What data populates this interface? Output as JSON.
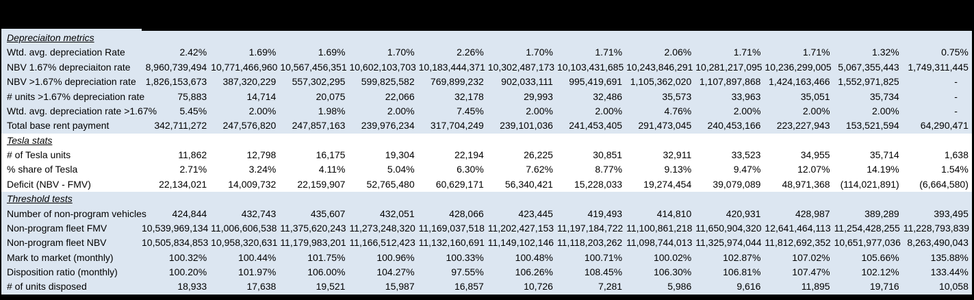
{
  "colors": {
    "header_bar": "#000000",
    "section_fill_blue": "#dce6f1",
    "section_fill_white": "#ffffff",
    "text": "#000000"
  },
  "table": {
    "num_data_columns": 12,
    "sections": [
      {
        "header": "Depreciaiton metrics",
        "fill": "#dce6f1",
        "rows": [
          {
            "label": "Wtd. avg. depreciation Rate",
            "values": [
              "2.42%",
              "1.69%",
              "1.69%",
              "1.70%",
              "2.26%",
              "1.70%",
              "1.71%",
              "2.06%",
              "1.71%",
              "1.71%",
              "1.32%",
              "0.75%"
            ]
          },
          {
            "label": "NBV 1.67% depreciaiton rate",
            "values": [
              "8,960,739,494",
              "10,771,466,960",
              "10,567,456,351",
              "10,602,103,703",
              "10,183,444,371",
              "10,302,487,173",
              "10,103,431,685",
              "10,243,846,291",
              "10,281,217,095",
              "10,236,299,005",
              "5,067,355,443",
              "1,749,311,445"
            ]
          },
          {
            "label": "NBV >1.67% depreciation rate",
            "values": [
              "1,826,153,673",
              "387,320,229",
              "557,302,295",
              "599,825,582",
              "769,899,232",
              "902,033,111",
              "995,419,691",
              "1,105,362,020",
              "1,107,897,868",
              "1,424,163,466",
              "1,552,971,825",
              "-"
            ]
          },
          {
            "label": "# units >1.67% depreciation rate",
            "values": [
              "75,883",
              "14,714",
              "20,075",
              "22,066",
              "32,178",
              "29,993",
              "32,486",
              "35,573",
              "33,963",
              "35,051",
              "35,734",
              "-"
            ]
          },
          {
            "label": "Wtd. avg. depreciation rate >1.67%",
            "values": [
              "5.45%",
              "2.00%",
              "1.98%",
              "2.00%",
              "7.45%",
              "2.00%",
              "2.00%",
              "4.76%",
              "2.00%",
              "2.00%",
              "2.00%",
              "-"
            ]
          },
          {
            "label": "Total base rent payment",
            "values": [
              "342,711,272",
              "247,576,820",
              "247,857,163",
              "239,976,234",
              "317,704,249",
              "239,101,036",
              "241,453,405",
              "291,473,045",
              "240,453,166",
              "223,227,943",
              "153,521,594",
              "64,290,471"
            ]
          }
        ]
      },
      {
        "header": "Tesla stats",
        "fill": "#ffffff",
        "rows": [
          {
            "label": "# of Tesla units",
            "values": [
              "11,862",
              "12,798",
              "16,175",
              "19,304",
              "22,194",
              "26,225",
              "30,851",
              "32,911",
              "33,523",
              "34,955",
              "35,714",
              "1,638"
            ]
          },
          {
            "label": "% share of Tesla",
            "values": [
              "2.71%",
              "3.24%",
              "4.11%",
              "5.04%",
              "6.30%",
              "7.62%",
              "8.77%",
              "9.13%",
              "9.47%",
              "12.07%",
              "14.19%",
              "1.54%"
            ]
          },
          {
            "label": "Deficit (NBV - FMV)",
            "values": [
              "22,134,021",
              "14,009,732",
              "22,159,907",
              "52,765,480",
              "60,629,171",
              "56,340,421",
              "15,228,033",
              "19,274,454",
              "39,079,089",
              "48,971,368",
              "(114,021,891)",
              "(6,664,580)"
            ]
          }
        ]
      },
      {
        "header": "Threshold tests",
        "fill": "#dce6f1",
        "rows": [
          {
            "label": "Number of non-program vehicles",
            "values": [
              "424,844",
              "432,743",
              "435,607",
              "432,051",
              "428,066",
              "423,445",
              "419,493",
              "414,810",
              "420,931",
              "428,987",
              "389,289",
              "393,495"
            ]
          },
          {
            "label": "Non-program fleet FMV",
            "values": [
              "10,539,969,134",
              "11,006,606,538",
              "11,375,620,243",
              "11,273,248,320",
              "11,169,037,518",
              "11,202,427,153",
              "11,197,184,722",
              "11,100,861,218",
              "11,650,904,320",
              "12,641,464,113",
              "11,254,428,255",
              "11,228,793,839"
            ]
          },
          {
            "label": "Non-program fleet NBV",
            "values": [
              "10,505,834,853",
              "10,958,320,631",
              "11,179,983,201",
              "11,166,512,423",
              "11,132,160,691",
              "11,149,102,146",
              "11,118,203,262",
              "11,098,744,013",
              "11,325,974,044",
              "11,812,692,352",
              "10,651,977,036",
              "8,263,490,043"
            ]
          },
          {
            "label": "Mark to market (monthly)",
            "values": [
              "100.32%",
              "100.44%",
              "101.75%",
              "100.96%",
              "100.33%",
              "100.48%",
              "100.71%",
              "100.02%",
              "102.87%",
              "107.02%",
              "105.66%",
              "135.88%"
            ]
          },
          {
            "label": "Disposition ratio (monthly)",
            "values": [
              "100.20%",
              "101.97%",
              "106.00%",
              "104.27%",
              "97.55%",
              "106.26%",
              "108.45%",
              "106.30%",
              "106.81%",
              "107.47%",
              "102.12%",
              "133.44%"
            ]
          },
          {
            "label": "# of units disposed",
            "values": [
              "18,933",
              "17,638",
              "19,521",
              "15,987",
              "16,857",
              "10,726",
              "7,281",
              "5,986",
              "9,616",
              "11,895",
              "19,716",
              "10,058"
            ]
          }
        ]
      }
    ]
  }
}
